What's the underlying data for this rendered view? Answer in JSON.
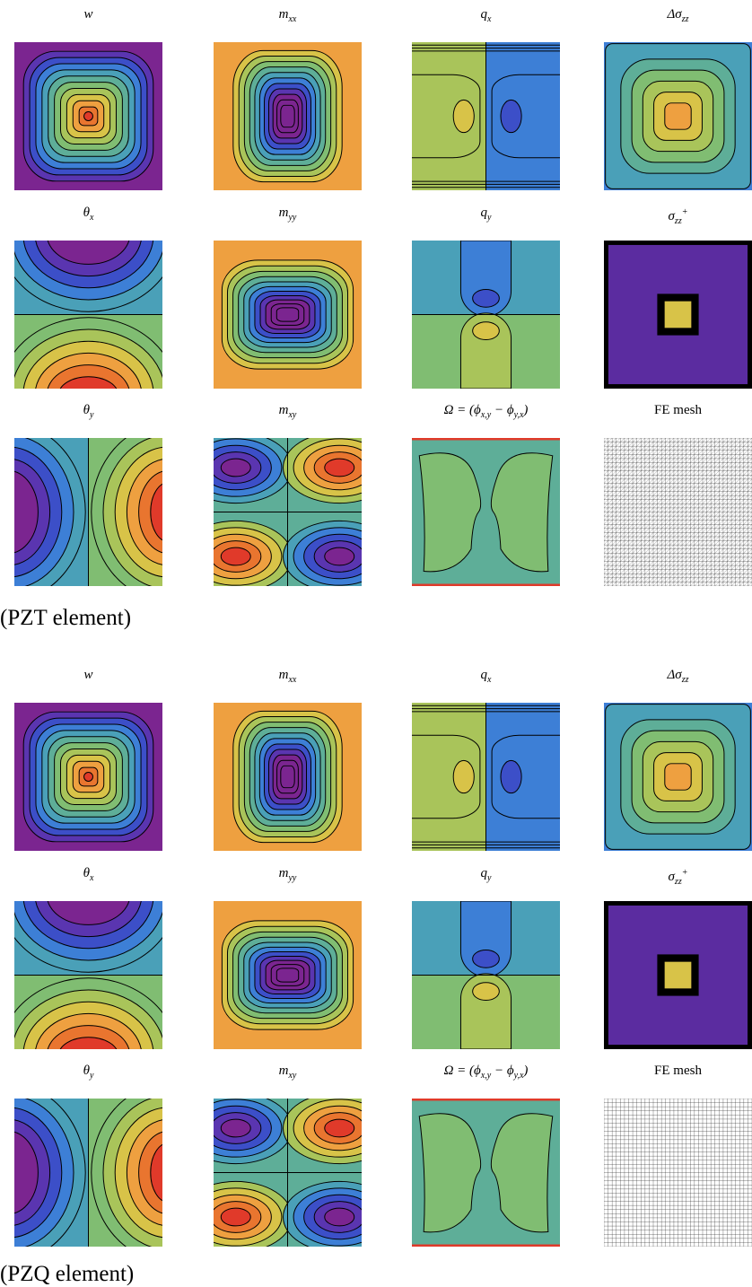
{
  "figures": [
    {
      "panels": [
        {
          "title": [
            {
              "text": "w"
            }
          ]
        },
        {
          "title": [
            {
              "text": "m"
            },
            {
              "text": "xx",
              "script": "sub"
            }
          ]
        },
        {
          "title": [
            {
              "text": "q"
            },
            {
              "text": "x",
              "script": "sub"
            }
          ]
        },
        {
          "title": [
            {
              "text": "Δσ"
            },
            {
              "text": "zz",
              "script": "sub"
            }
          ]
        },
        {
          "title": [
            {
              "text": "θ"
            },
            {
              "text": "x",
              "script": "sub"
            }
          ]
        },
        {
          "title": [
            {
              "text": "m"
            },
            {
              "text": "yy",
              "script": "sub"
            }
          ]
        },
        {
          "title": [
            {
              "text": "q"
            },
            {
              "text": "y",
              "script": "sub"
            }
          ]
        },
        {
          "title": [
            {
              "text": "σ"
            },
            {
              "text": "zz",
              "script": "sub"
            },
            {
              "text": "+",
              "script": "sup"
            }
          ]
        },
        {
          "title": [
            {
              "text": "θ"
            },
            {
              "text": "y",
              "script": "sub"
            }
          ]
        },
        {
          "title": [
            {
              "text": "m"
            },
            {
              "text": "xy",
              "script": "sub"
            }
          ]
        },
        {
          "title": [
            {
              "text": "Ω = (ϕ"
            },
            {
              "text": "x,y",
              "script": "sub"
            },
            {
              "text": " − ϕ"
            },
            {
              "text": "y,x",
              "script": "sub"
            },
            {
              "text": ")"
            }
          ]
        },
        {
          "title": [
            {
              "text": "FE mesh"
            }
          ]
        }
      ],
      "caption": "(PZT element)"
    },
    {
      "panels": [
        {
          "title": [
            {
              "text": "w"
            }
          ]
        },
        {
          "title": [
            {
              "text": "m"
            },
            {
              "text": "xx",
              "script": "sub"
            }
          ]
        },
        {
          "title": [
            {
              "text": "q"
            },
            {
              "text": "x",
              "script": "sub"
            }
          ]
        },
        {
          "title": [
            {
              "text": "Δσ"
            },
            {
              "text": "zz",
              "script": "sub"
            }
          ]
        },
        {
          "title": [
            {
              "text": "θ"
            },
            {
              "text": "x",
              "script": "sub"
            }
          ]
        },
        {
          "title": [
            {
              "text": "m"
            },
            {
              "text": "yy",
              "script": "sub"
            }
          ]
        },
        {
          "title": [
            {
              "text": "q"
            },
            {
              "text": "y",
              "script": "sub"
            }
          ]
        },
        {
          "title": [
            {
              "text": "σ"
            },
            {
              "text": "zz",
              "script": "sub"
            },
            {
              "text": "+",
              "script": "sup"
            }
          ]
        },
        {
          "title": [
            {
              "text": "θ"
            },
            {
              "text": "y",
              "script": "sub"
            }
          ]
        },
        {
          "title": [
            {
              "text": "m"
            },
            {
              "text": "xy",
              "script": "sub"
            }
          ]
        },
        {
          "title": [
            {
              "text": "Ω = (ϕ"
            },
            {
              "text": "x,y",
              "script": "sub"
            },
            {
              "text": " − ϕ"
            },
            {
              "text": "y,x",
              "script": "sub"
            },
            {
              "text": ")"
            }
          ]
        },
        {
          "title": [
            {
              "text": "FE mesh"
            }
          ]
        }
      ],
      "caption": "(PZQ element)"
    }
  ]
}
